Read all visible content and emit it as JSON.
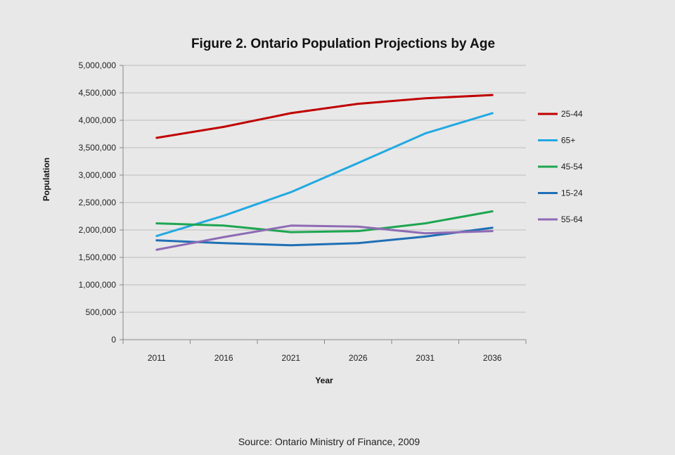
{
  "chart_data": {
    "type": "line",
    "title": "Figure 2. Ontario Population Projections by Age",
    "xlabel": "Year",
    "ylabel": "Population",
    "categories": [
      "2011",
      "2016",
      "2021",
      "2026",
      "2031",
      "2036"
    ],
    "ylim": [
      0,
      5000000
    ],
    "yticks": [
      0,
      500000,
      1000000,
      1500000,
      2000000,
      2500000,
      3000000,
      3500000,
      4000000,
      4500000,
      5000000
    ],
    "ytick_labels": [
      "0",
      "500,000",
      "1,000,000",
      "1,500,000",
      "2,000,000",
      "2,500,000",
      "3,000,000",
      "3,500,000",
      "4,000,000",
      "4,500,000",
      "5,000,000"
    ],
    "grid": true,
    "legend_position": "right",
    "series": [
      {
        "name": "25-44",
        "color": "#c00000",
        "values": [
          3680000,
          3880000,
          4130000,
          4300000,
          4400000,
          4460000
        ]
      },
      {
        "name": "65+",
        "color": "#22a9e1",
        "values": [
          1890000,
          2260000,
          2690000,
          3220000,
          3760000,
          4130000
        ]
      },
      {
        "name": "45-54",
        "color": "#1ea650",
        "values": [
          2120000,
          2080000,
          1960000,
          1980000,
          2120000,
          2340000
        ]
      },
      {
        "name": "15-24",
        "color": "#1f6fb5",
        "values": [
          1810000,
          1760000,
          1720000,
          1760000,
          1880000,
          2040000
        ]
      },
      {
        "name": "55-64",
        "color": "#8e6bb5",
        "values": [
          1640000,
          1870000,
          2080000,
          2060000,
          1940000,
          1980000
        ]
      }
    ],
    "source": "Source: Ontario Ministry of Finance, 2009"
  }
}
